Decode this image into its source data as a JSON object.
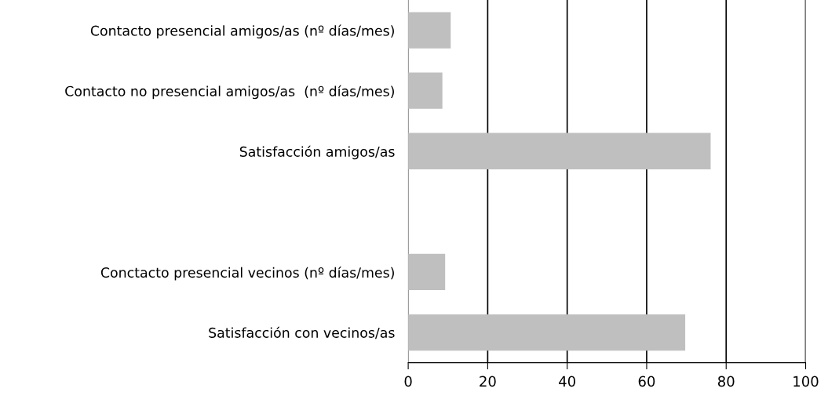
{
  "chart_data": {
    "type": "bar",
    "orientation": "horizontal",
    "categories": [
      "Contacto presencial amigos/as (nº días/mes)",
      "Contacto no presencial amigos/as  (nº días/mes)",
      "Satisfacción amigos/as",
      null,
      "Conctacto presencial vecinos (nº días/mes)",
      "Satisfacción con vecinos/as"
    ],
    "values": [
      10.7,
      8.6,
      76.1,
      null,
      9.3,
      69.7
    ],
    "color": "#bfbfbf",
    "xlim": [
      0,
      100
    ],
    "xticks": [
      0,
      20,
      40,
      60,
      80,
      100
    ],
    "grid": "x",
    "legend": false
  }
}
